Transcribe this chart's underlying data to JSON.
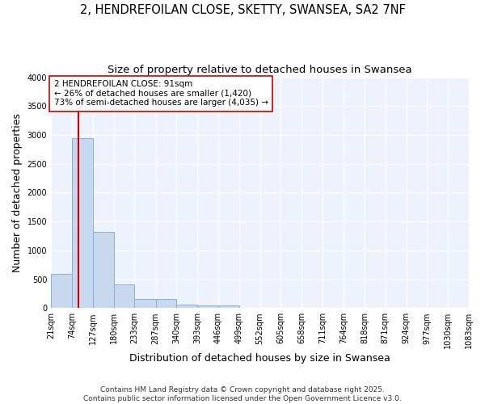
{
  "title_line1": "2, HENDREFOILAN CLOSE, SKETTY, SWANSEA, SA2 7NF",
  "title_line2": "Size of property relative to detached houses in Swansea",
  "xlabel": "Distribution of detached houses by size in Swansea",
  "ylabel": "Number of detached properties",
  "bar_color": "#c8d8ef",
  "bar_edgecolor": "#8ab0d8",
  "background_color": "#eef2fc",
  "grid_color": "#ffffff",
  "bin_edges": [
    21,
    74,
    127,
    180,
    233,
    287,
    340,
    393,
    446,
    499,
    552,
    605,
    658,
    711,
    764,
    818,
    871,
    924,
    977,
    1030,
    1083
  ],
  "bar_heights": [
    590,
    2950,
    1320,
    410,
    165,
    160,
    65,
    45,
    45,
    0,
    0,
    0,
    0,
    0,
    0,
    0,
    0,
    0,
    0,
    0
  ],
  "tick_labels": [
    "21sqm",
    "74sqm",
    "127sqm",
    "180sqm",
    "233sqm",
    "287sqm",
    "340sqm",
    "393sqm",
    "446sqm",
    "499sqm",
    "552sqm",
    "605sqm",
    "658sqm",
    "711sqm",
    "764sqm",
    "818sqm",
    "871sqm",
    "924sqm",
    "977sqm",
    "1030sqm",
    "1083sqm"
  ],
  "vline_x": 91,
  "vline_color": "#cc0000",
  "annotation_text": "2 HENDREFOILAN CLOSE: 91sqm\n← 26% of detached houses are smaller (1,420)\n73% of semi-detached houses are larger (4,035) →",
  "annotation_box_edgecolor": "#cc0000",
  "annotation_box_facecolor": "#ffffff",
  "ylim": [
    0,
    4000
  ],
  "yticks": [
    0,
    500,
    1000,
    1500,
    2000,
    2500,
    3000,
    3500,
    4000
  ],
  "footer_text": "Contains HM Land Registry data © Crown copyright and database right 2025.\nContains public sector information licensed under the Open Government Licence v3.0.",
  "title_fontsize": 10.5,
  "subtitle_fontsize": 9.5,
  "axis_label_fontsize": 9,
  "tick_fontsize": 7,
  "annotation_fontsize": 7.5,
  "footer_fontsize": 6.5
}
